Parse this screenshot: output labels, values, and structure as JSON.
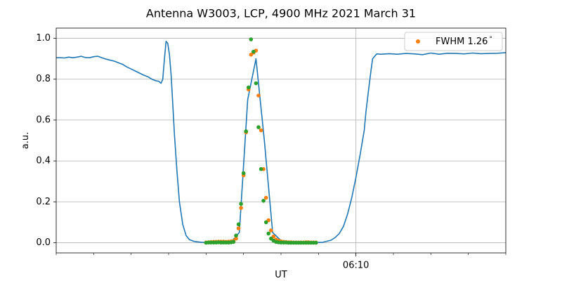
{
  "chart_data": {
    "type": "line",
    "title": "Antenna W3003, LCP, 4900 MHz 2021 March 31",
    "xlabel": "UT",
    "ylabel": "a.u.",
    "x_unit": "UTC",
    "xlim": [
      "2021-03-31T06:04:00",
      "2021-03-31T06:13:00"
    ],
    "ylim": [
      -0.05,
      1.05
    ],
    "xticks": [
      {
        "value": "2021-03-31T06:10:00",
        "label": "06:10"
      }
    ],
    "x_minor_tick_interval_seconds": 45,
    "yticks": [
      0.0,
      0.2,
      0.4,
      0.6,
      0.8,
      1.0
    ],
    "ytick_labels": [
      "0.0",
      "0.2",
      "0.4",
      "0.6",
      "0.8",
      "1.0"
    ],
    "grid": true,
    "legend": {
      "position": "top-right",
      "entries": [
        "FWHM 1.26$^\\circ$"
      ],
      "display": [
        "FWHM 1.26",
        "°"
      ]
    },
    "series": [
      {
        "role": "measured-profile",
        "style": "line",
        "color": "#1f77b4",
        "x": [
          "06:04:00",
          "06:04:05",
          "06:04:10",
          "06:04:15",
          "06:04:20",
          "06:04:25",
          "06:04:30",
          "06:04:35",
          "06:04:40",
          "06:04:45",
          "06:04:50",
          "06:04:55",
          "06:05:00",
          "06:05:05",
          "06:05:10",
          "06:05:15",
          "06:05:20",
          "06:05:25",
          "06:05:30",
          "06:05:35",
          "06:05:40",
          "06:05:45",
          "06:05:50",
          "06:05:55",
          "06:06:00",
          "06:06:03",
          "06:06:06",
          "06:06:08",
          "06:06:10",
          "06:06:12",
          "06:06:14",
          "06:06:16",
          "06:06:18",
          "06:06:20",
          "06:06:22",
          "06:06:25",
          "06:06:28",
          "06:06:32",
          "06:06:36",
          "06:06:40",
          "06:06:45",
          "06:06:50",
          "06:06:55",
          "06:07:00",
          "06:07:10",
          "06:07:20",
          "06:07:30",
          "06:07:40",
          "06:07:50",
          "06:08:00",
          "06:08:10",
          "06:08:20",
          "06:08:30",
          "06:08:40",
          "06:08:50",
          "06:09:00",
          "06:09:10",
          "06:09:20",
          "06:09:30",
          "06:09:35",
          "06:09:40",
          "06:09:45",
          "06:09:50",
          "06:09:55",
          "06:10:00",
          "06:10:05",
          "06:10:10",
          "06:10:12",
          "06:10:15",
          "06:10:18",
          "06:10:20",
          "06:10:25",
          "06:10:30",
          "06:10:40",
          "06:10:50",
          "06:11:00",
          "06:11:10",
          "06:11:20",
          "06:11:30",
          "06:11:40",
          "06:11:50",
          "06:12:00",
          "06:12:10",
          "06:12:20",
          "06:12:30",
          "06:12:40",
          "06:12:50",
          "06:13:00"
        ],
        "y": [
          0.905,
          0.905,
          0.904,
          0.908,
          0.905,
          0.908,
          0.912,
          0.906,
          0.905,
          0.91,
          0.912,
          0.905,
          0.898,
          0.893,
          0.888,
          0.88,
          0.872,
          0.86,
          0.85,
          0.84,
          0.83,
          0.82,
          0.812,
          0.8,
          0.792,
          0.79,
          0.78,
          0.8,
          0.9,
          0.985,
          0.975,
          0.92,
          0.82,
          0.68,
          0.53,
          0.35,
          0.2,
          0.09,
          0.035,
          0.015,
          0.007,
          0.004,
          0.002,
          0.001,
          0.001,
          0.001,
          0.003,
          0.05,
          0.7,
          0.9,
          0.5,
          0.05,
          0.01,
          0.003,
          0.002,
          0.001,
          0.001,
          0.002,
          0.012,
          0.025,
          0.045,
          0.08,
          0.14,
          0.22,
          0.32,
          0.43,
          0.55,
          0.64,
          0.74,
          0.84,
          0.9,
          0.924,
          0.922,
          0.925,
          0.922,
          0.926,
          0.924,
          0.92,
          0.928,
          0.922,
          0.927,
          0.926,
          0.924,
          0.928,
          0.925,
          0.926,
          0.927,
          0.93
        ]
      },
      {
        "role": "fit-orange",
        "style": "scatter",
        "color": "#ff7f0e",
        "name": "FWHM 1.26$^\\circ$",
        "x": [
          "06:07:00",
          "06:07:03",
          "06:07:06",
          "06:07:09",
          "06:07:12",
          "06:07:15",
          "06:07:18",
          "06:07:21",
          "06:07:24",
          "06:07:27",
          "06:07:30",
          "06:07:33",
          "06:07:36",
          "06:07:39",
          "06:07:42",
          "06:07:45",
          "06:07:48",
          "06:07:51",
          "06:07:54",
          "06:07:57",
          "06:08:00",
          "06:08:03",
          "06:08:06",
          "06:08:09",
          "06:08:12",
          "06:08:15",
          "06:08:18",
          "06:08:21",
          "06:08:24",
          "06:08:27",
          "06:08:30",
          "06:08:33",
          "06:08:36",
          "06:08:39",
          "06:08:42",
          "06:08:45",
          "06:08:48",
          "06:08:51",
          "06:08:54",
          "06:08:57",
          "06:09:00",
          "06:09:03",
          "06:09:06",
          "06:09:09",
          "06:09:12"
        ],
        "y": [
          0.001,
          0.002,
          0.003,
          0.004,
          0.004,
          0.005,
          0.005,
          0.005,
          0.004,
          0.005,
          0.006,
          0.008,
          0.02,
          0.07,
          0.17,
          0.33,
          0.54,
          0.75,
          0.92,
          0.93,
          0.94,
          0.72,
          0.55,
          0.36,
          0.22,
          0.11,
          0.06,
          0.03,
          0.015,
          0.01,
          0.006,
          0.004,
          0.003,
          0.002,
          0.002,
          0.001,
          0.001,
          0.001,
          0.001,
          0.001,
          0.002,
          0.002,
          0.001,
          0.001,
          0.001
        ]
      },
      {
        "role": "fit-green",
        "style": "scatter",
        "color": "#2ca02c",
        "x": [
          "06:07:00",
          "06:07:03",
          "06:07:06",
          "06:07:09",
          "06:07:12",
          "06:07:15",
          "06:07:18",
          "06:07:21",
          "06:07:24",
          "06:07:27",
          "06:07:30",
          "06:07:33",
          "06:07:36",
          "06:07:39",
          "06:07:42",
          "06:07:45",
          "06:07:48",
          "06:07:51",
          "06:07:54",
          "06:07:57",
          "06:08:00",
          "06:08:03",
          "06:08:06",
          "06:08:09",
          "06:08:12",
          "06:08:15",
          "06:08:18",
          "06:08:21",
          "06:08:24",
          "06:08:27",
          "06:08:30",
          "06:08:33",
          "06:08:36",
          "06:08:39",
          "06:08:42",
          "06:08:45",
          "06:08:48",
          "06:08:51",
          "06:08:54",
          "06:08:57",
          "06:09:00",
          "06:09:03",
          "06:09:06",
          "06:09:09",
          "06:09:12"
        ],
        "y": [
          0.0,
          0.001,
          0.001,
          0.001,
          0.001,
          0.002,
          0.001,
          0.001,
          0.001,
          0.001,
          0.002,
          0.004,
          0.035,
          0.09,
          0.19,
          0.34,
          0.545,
          0.76,
          0.995,
          0.935,
          0.78,
          0.565,
          0.36,
          0.205,
          0.1,
          0.045,
          0.02,
          0.01,
          0.004,
          0.002,
          0.001,
          0.001,
          0.001,
          0.0,
          0.0,
          0.0,
          0.0,
          0.0,
          0.0,
          0.0,
          0.0,
          0.0,
          0.0,
          0.0,
          0.0
        ]
      }
    ]
  }
}
